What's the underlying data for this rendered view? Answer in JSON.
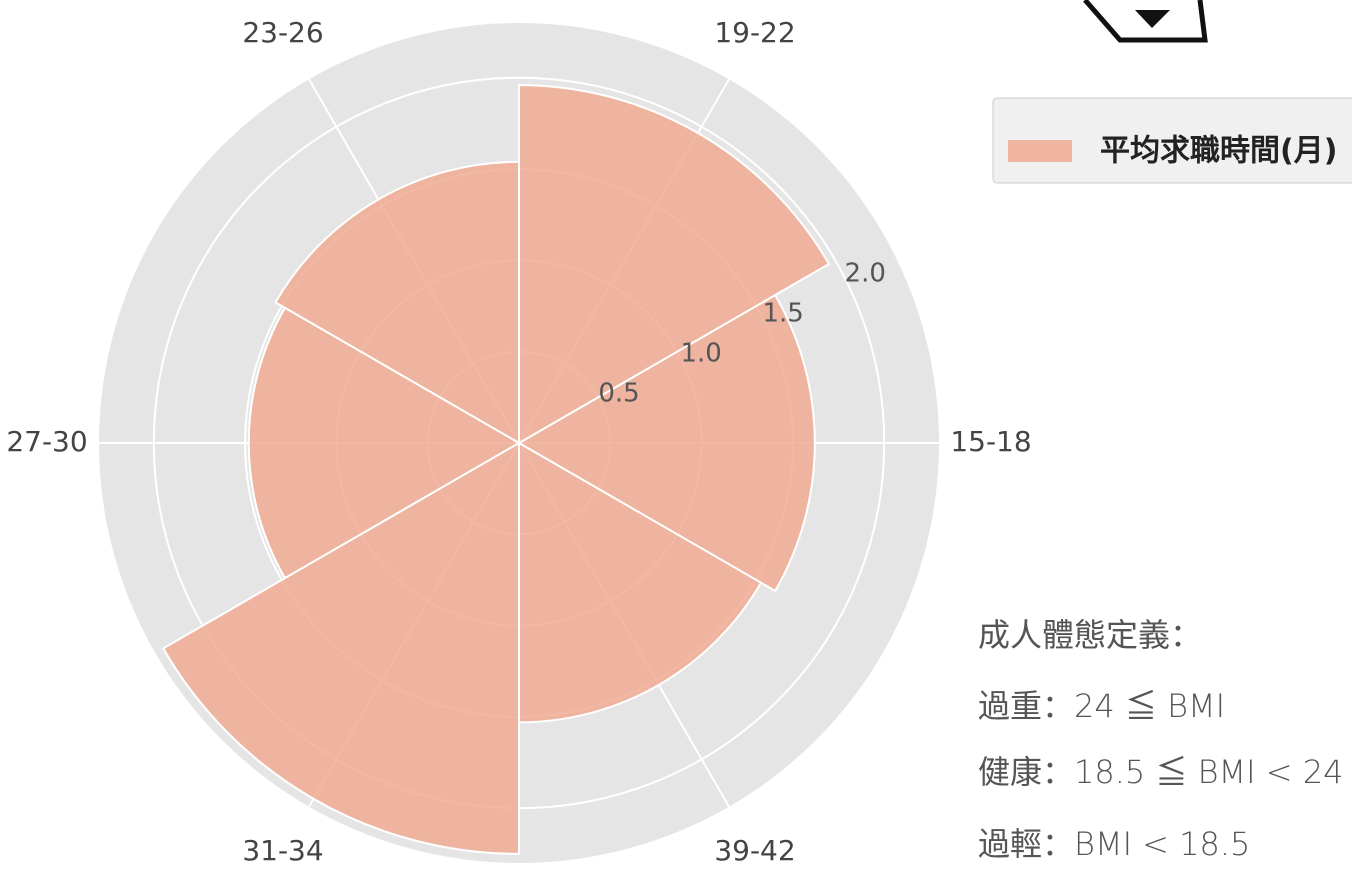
{
  "chart_data": {
    "type": "polar_bar",
    "categories": [
      "15-18",
      "19-22",
      "23-26",
      "27-30",
      "31-34",
      "39-42"
    ],
    "series": [
      {
        "name": "平均求職時間(月)",
        "color": "#f0ab93",
        "values": [
          1.62,
          1.96,
          1.54,
          1.48,
          2.25,
          1.53
        ]
      }
    ],
    "ylim": [
      0,
      2.3
    ],
    "yticks": [
      0.5,
      1.0,
      1.5,
      2.0
    ],
    "grid": true,
    "legend": "upper right"
  },
  "note": {
    "title": "成人體態定義：",
    "lines": [
      "過重：24 ≦ BMI",
      "健康：18.5 ≦ BMI < 24",
      "過輕：BMI < 18.5"
    ]
  }
}
